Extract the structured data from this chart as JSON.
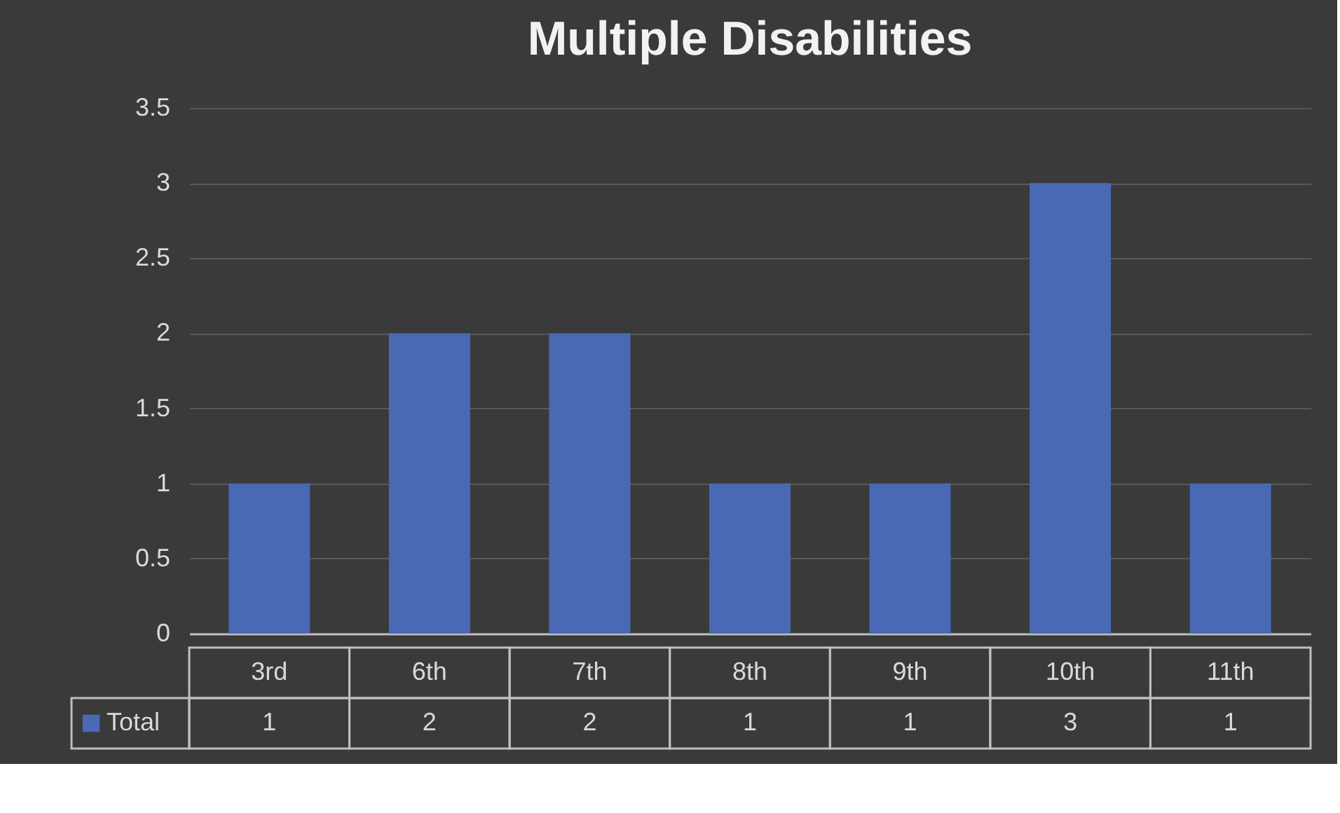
{
  "chart_data": {
    "type": "bar",
    "title": "Multiple Disabilities",
    "categories": [
      "3rd",
      "6th",
      "7th",
      "8th",
      "9th",
      "10th",
      "11th"
    ],
    "series": [
      {
        "name": "Total",
        "color": "#4a69b5",
        "values": [
          1,
          2,
          2,
          1,
          1,
          3,
          1
        ]
      }
    ],
    "ylim": [
      0,
      3.5
    ],
    "yticks": [
      0,
      0.5,
      1,
      1.5,
      2,
      2.5,
      3,
      3.5
    ],
    "grid": "y",
    "data_labels": true,
    "legend": "bottom left"
  }
}
